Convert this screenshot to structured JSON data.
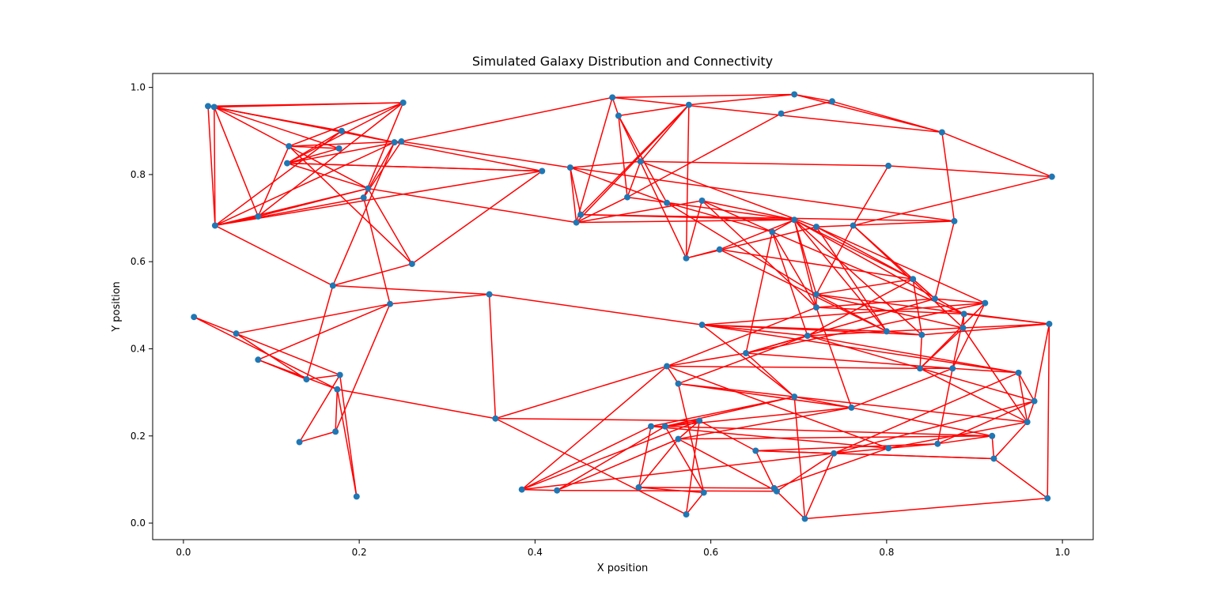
{
  "chart_data": {
    "type": "scatter",
    "title": "Simulated Galaxy Distribution and Connectivity",
    "xlabel": "X position",
    "ylabel": "Y position",
    "xlim": [
      -0.035,
      1.035
    ],
    "ylim": [
      -0.038,
      1.032
    ],
    "xticks": [
      "0.0",
      "0.2",
      "0.4",
      "0.6",
      "0.8",
      "1.0"
    ],
    "yticks": [
      "0.0",
      "0.2",
      "0.4",
      "0.6",
      "0.8",
      "1.0"
    ],
    "grid": false,
    "point_color": "#1f77b4",
    "edge_color": "#ff0000",
    "points": [
      [
        0.028,
        0.957
      ],
      [
        0.035,
        0.955
      ],
      [
        0.25,
        0.965
      ],
      [
        0.18,
        0.9
      ],
      [
        0.177,
        0.86
      ],
      [
        0.12,
        0.865
      ],
      [
        0.118,
        0.826
      ],
      [
        0.24,
        0.874
      ],
      [
        0.248,
        0.876
      ],
      [
        0.21,
        0.768
      ],
      [
        0.205,
        0.747
      ],
      [
        0.085,
        0.704
      ],
      [
        0.036,
        0.683
      ],
      [
        0.26,
        0.595
      ],
      [
        0.17,
        0.545
      ],
      [
        0.348,
        0.525
      ],
      [
        0.235,
        0.503
      ],
      [
        0.012,
        0.473
      ],
      [
        0.06,
        0.435
      ],
      [
        0.085,
        0.375
      ],
      [
        0.14,
        0.33
      ],
      [
        0.178,
        0.34
      ],
      [
        0.175,
        0.307
      ],
      [
        0.132,
        0.186
      ],
      [
        0.173,
        0.21
      ],
      [
        0.197,
        0.061
      ],
      [
        0.355,
        0.24
      ],
      [
        0.408,
        0.808
      ],
      [
        0.44,
        0.816
      ],
      [
        0.447,
        0.69
      ],
      [
        0.452,
        0.708
      ],
      [
        0.488,
        0.977
      ],
      [
        0.495,
        0.935
      ],
      [
        0.505,
        0.748
      ],
      [
        0.52,
        0.83
      ],
      [
        0.575,
        0.96
      ],
      [
        0.55,
        0.735
      ],
      [
        0.59,
        0.74
      ],
      [
        0.572,
        0.608
      ],
      [
        0.61,
        0.628
      ],
      [
        0.68,
        0.94
      ],
      [
        0.695,
        0.984
      ],
      [
        0.738,
        0.968
      ],
      [
        0.863,
        0.897
      ],
      [
        0.988,
        0.795
      ],
      [
        0.802,
        0.82
      ],
      [
        0.877,
        0.693
      ],
      [
        0.695,
        0.696
      ],
      [
        0.67,
        0.668
      ],
      [
        0.72,
        0.68
      ],
      [
        0.762,
        0.683
      ],
      [
        0.72,
        0.525
      ],
      [
        0.72,
        0.495
      ],
      [
        0.83,
        0.56
      ],
      [
        0.855,
        0.515
      ],
      [
        0.912,
        0.505
      ],
      [
        0.888,
        0.48
      ],
      [
        0.8,
        0.44
      ],
      [
        0.84,
        0.432
      ],
      [
        0.887,
        0.448
      ],
      [
        0.985,
        0.457
      ],
      [
        0.59,
        0.455
      ],
      [
        0.71,
        0.43
      ],
      [
        0.64,
        0.39
      ],
      [
        0.55,
        0.36
      ],
      [
        0.563,
        0.32
      ],
      [
        0.838,
        0.355
      ],
      [
        0.875,
        0.355
      ],
      [
        0.95,
        0.345
      ],
      [
        0.695,
        0.29
      ],
      [
        0.76,
        0.265
      ],
      [
        0.968,
        0.28
      ],
      [
        0.96,
        0.232
      ],
      [
        0.532,
        0.222
      ],
      [
        0.548,
        0.222
      ],
      [
        0.587,
        0.235
      ],
      [
        0.563,
        0.193
      ],
      [
        0.651,
        0.166
      ],
      [
        0.74,
        0.16
      ],
      [
        0.802,
        0.172
      ],
      [
        0.858,
        0.182
      ],
      [
        0.92,
        0.2
      ],
      [
        0.922,
        0.148
      ],
      [
        0.385,
        0.077
      ],
      [
        0.425,
        0.075
      ],
      [
        0.518,
        0.082
      ],
      [
        0.592,
        0.07
      ],
      [
        0.672,
        0.08
      ],
      [
        0.675,
        0.073
      ],
      [
        0.572,
        0.02
      ],
      [
        0.707,
        0.01
      ],
      [
        0.983,
        0.057
      ]
    ],
    "edges": [
      [
        0,
        1
      ],
      [
        0,
        12
      ],
      [
        1,
        12
      ],
      [
        0,
        3
      ],
      [
        0,
        2
      ],
      [
        1,
        2
      ],
      [
        1,
        4
      ],
      [
        1,
        7
      ],
      [
        1,
        11
      ],
      [
        1,
        9
      ],
      [
        1,
        27
      ],
      [
        2,
        5
      ],
      [
        2,
        6
      ],
      [
        2,
        11
      ],
      [
        2,
        10
      ],
      [
        3,
        6
      ],
      [
        3,
        7
      ],
      [
        4,
        5
      ],
      [
        5,
        8
      ],
      [
        5,
        13
      ],
      [
        6,
        8
      ],
      [
        6,
        9
      ],
      [
        6,
        27
      ],
      [
        7,
        12
      ],
      [
        7,
        14
      ],
      [
        7,
        10
      ],
      [
        8,
        28
      ],
      [
        8,
        31
      ],
      [
        9,
        12
      ],
      [
        9,
        11
      ],
      [
        9,
        29
      ],
      [
        10,
        16
      ],
      [
        11,
        12
      ],
      [
        12,
        27
      ],
      [
        12,
        14
      ],
      [
        13,
        9
      ],
      [
        13,
        27
      ],
      [
        14,
        15
      ],
      [
        14,
        20
      ],
      [
        15,
        16
      ],
      [
        15,
        26
      ],
      [
        15,
        61
      ],
      [
        16,
        18
      ],
      [
        16,
        19
      ],
      [
        17,
        18
      ],
      [
        17,
        22
      ],
      [
        18,
        21
      ],
      [
        18,
        20
      ],
      [
        19,
        22
      ],
      [
        20,
        21
      ],
      [
        21,
        23
      ],
      [
        21,
        25
      ],
      [
        22,
        24
      ],
      [
        22,
        26
      ],
      [
        23,
        24
      ],
      [
        24,
        16
      ],
      [
        25,
        22
      ],
      [
        27,
        6
      ],
      [
        28,
        29
      ],
      [
        28,
        30
      ],
      [
        28,
        34
      ],
      [
        28,
        36
      ],
      [
        28,
        46
      ],
      [
        29,
        33
      ],
      [
        29,
        37
      ],
      [
        29,
        31
      ],
      [
        30,
        35
      ],
      [
        30,
        47
      ],
      [
        31,
        32
      ],
      [
        31,
        41
      ],
      [
        31,
        43
      ],
      [
        32,
        33
      ],
      [
        32,
        35
      ],
      [
        32,
        36
      ],
      [
        33,
        34
      ],
      [
        33,
        40
      ],
      [
        34,
        45
      ],
      [
        34,
        49
      ],
      [
        35,
        29
      ],
      [
        35,
        41
      ],
      [
        35,
        38
      ],
      [
        36,
        48
      ],
      [
        36,
        51
      ],
      [
        37,
        38
      ],
      [
        37,
        47
      ],
      [
        37,
        52
      ],
      [
        38,
        39
      ],
      [
        38,
        49
      ],
      [
        39,
        47
      ],
      [
        39,
        57
      ],
      [
        40,
        42
      ],
      [
        41,
        43
      ],
      [
        41,
        42
      ],
      [
        42,
        43
      ],
      [
        43,
        44
      ],
      [
        43,
        46
      ],
      [
        44,
        45
      ],
      [
        44,
        50
      ],
      [
        45,
        50
      ],
      [
        46,
        49
      ],
      [
        46,
        54
      ],
      [
        47,
        48
      ],
      [
        47,
        51
      ],
      [
        47,
        56
      ],
      [
        47,
        58
      ],
      [
        48,
        52
      ],
      [
        48,
        63
      ],
      [
        49,
        53
      ],
      [
        49,
        55
      ],
      [
        50,
        51
      ],
      [
        50,
        59
      ],
      [
        51,
        53
      ],
      [
        51,
        57
      ],
      [
        51,
        60
      ],
      [
        52,
        56
      ],
      [
        52,
        64
      ],
      [
        53,
        54
      ],
      [
        53,
        62
      ],
      [
        54,
        55
      ],
      [
        55,
        61
      ],
      [
        56,
        60
      ],
      [
        56,
        67
      ],
      [
        57,
        58
      ],
      [
        57,
        59
      ],
      [
        58,
        61
      ],
      [
        59,
        60
      ],
      [
        59,
        66
      ],
      [
        60,
        71
      ],
      [
        61,
        62
      ],
      [
        61,
        69
      ],
      [
        61,
        57
      ],
      [
        62,
        63
      ],
      [
        62,
        68
      ],
      [
        63,
        64
      ],
      [
        63,
        55
      ],
      [
        64,
        65
      ],
      [
        64,
        79
      ],
      [
        65,
        69
      ],
      [
        65,
        70
      ],
      [
        66,
        67
      ],
      [
        66,
        72
      ],
      [
        67,
        68
      ],
      [
        67,
        70
      ],
      [
        68,
        71
      ],
      [
        68,
        78
      ],
      [
        69,
        70
      ],
      [
        69,
        73
      ],
      [
        69,
        72
      ],
      [
        70,
        74
      ],
      [
        70,
        81
      ],
      [
        71,
        72
      ],
      [
        71,
        80
      ],
      [
        72,
        82
      ],
      [
        73,
        74
      ],
      [
        73,
        85
      ],
      [
        74,
        75
      ],
      [
        74,
        86
      ],
      [
        75,
        76
      ],
      [
        75,
        77
      ],
      [
        75,
        83
      ],
      [
        76,
        84
      ],
      [
        76,
        85
      ],
      [
        77,
        78
      ],
      [
        77,
        87
      ],
      [
        78,
        79
      ],
      [
        78,
        90
      ],
      [
        79,
        80
      ],
      [
        79,
        73
      ],
      [
        80,
        81
      ],
      [
        81,
        82
      ],
      [
        82,
        91
      ],
      [
        83,
        84
      ],
      [
        83,
        73
      ],
      [
        84,
        88
      ],
      [
        85,
        86
      ],
      [
        85,
        87
      ],
      [
        86,
        89
      ],
      [
        87,
        88
      ],
      [
        88,
        90
      ],
      [
        89,
        75
      ],
      [
        90,
        91
      ],
      [
        90,
        69
      ],
      [
        91,
        60
      ],
      [
        26,
        64
      ],
      [
        26,
        89
      ],
      [
        26,
        75
      ],
      [
        62,
        65
      ],
      [
        52,
        54
      ],
      [
        58,
        66
      ],
      [
        64,
        66
      ],
      [
        63,
        69
      ],
      [
        69,
        74
      ],
      [
        76,
        88
      ],
      [
        48,
        62
      ],
      [
        49,
        57
      ],
      [
        50,
        54
      ],
      [
        56,
        59
      ],
      [
        53,
        58
      ],
      [
        47,
        52
      ],
      [
        47,
        57
      ],
      [
        51,
        59
      ],
      [
        48,
        56
      ],
      [
        37,
        48
      ],
      [
        33,
        47
      ],
      [
        30,
        46
      ],
      [
        29,
        47
      ],
      [
        32,
        38
      ],
      [
        34,
        35
      ],
      [
        39,
        53
      ],
      [
        61,
        68
      ],
      [
        63,
        67
      ],
      [
        70,
        76
      ],
      [
        71,
        78
      ],
      [
        72,
        79
      ],
      [
        77,
        80
      ],
      [
        78,
        82
      ],
      [
        81,
        74
      ],
      [
        64,
        83
      ],
      [
        65,
        86
      ],
      [
        62,
        71
      ],
      [
        52,
        70
      ],
      [
        68,
        72
      ],
      [
        55,
        67
      ],
      [
        58,
        60
      ],
      [
        59,
        72
      ],
      [
        57,
        62
      ],
      [
        80,
        67
      ],
      [
        84,
        74
      ],
      [
        83,
        78
      ],
      [
        88,
        78
      ],
      [
        87,
        79
      ],
      [
        76,
        81
      ],
      [
        77,
        82
      ],
      [
        55,
        66
      ],
      [
        54,
        63
      ],
      [
        53,
        47
      ],
      [
        51,
        52
      ],
      [
        10,
        12
      ],
      [
        14,
        13
      ],
      [
        19,
        20
      ],
      [
        3,
        12
      ],
      [
        4,
        6
      ],
      [
        8,
        10
      ],
      [
        11,
        5
      ]
    ]
  }
}
